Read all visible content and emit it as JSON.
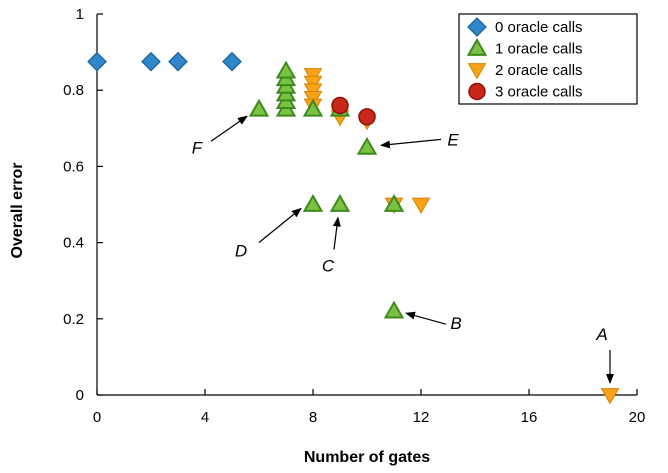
{
  "chart_data": {
    "type": "scatter",
    "xlabel": "Number of gates",
    "ylabel": "Overall error",
    "xlim": [
      0,
      20
    ],
    "ylim": [
      0,
      1
    ],
    "xticks": [
      0,
      4,
      8,
      12,
      16,
      20
    ],
    "yticks": [
      0,
      0.2,
      0.4,
      0.6,
      0.8,
      1
    ],
    "ytick_labels": [
      "0",
      "0.2",
      "0.4",
      "0.6",
      "0.8",
      "1"
    ],
    "grid": false,
    "legend_position": "top-right",
    "series": [
      {
        "name": "0 oracle calls",
        "marker": "diamond",
        "color": "#2f86c9",
        "points": [
          [
            0,
            0.875
          ],
          [
            2,
            0.875
          ],
          [
            3,
            0.875
          ],
          [
            5,
            0.875
          ]
        ]
      },
      {
        "name": "1 oracle calls",
        "marker": "triangle-up",
        "color": "#7cc242",
        "points": [
          [
            6,
            0.75
          ],
          [
            7,
            0.75
          ],
          [
            7,
            0.77
          ],
          [
            7,
            0.79
          ],
          [
            7,
            0.81
          ],
          [
            7,
            0.83
          ],
          [
            7,
            0.85
          ],
          [
            8,
            0.75
          ],
          [
            9,
            0.75
          ],
          [
            10,
            0.65
          ],
          [
            8,
            0.5
          ],
          [
            9,
            0.5
          ],
          [
            11,
            0.5
          ],
          [
            11,
            0.22
          ]
        ]
      },
      {
        "name": "2 oracle calls",
        "marker": "triangle-down",
        "color": "#f7a21b",
        "points": [
          [
            8,
            0.84
          ],
          [
            8,
            0.82
          ],
          [
            8,
            0.8
          ],
          [
            8,
            0.78
          ],
          [
            8,
            0.76
          ],
          [
            9,
            0.73
          ],
          [
            10,
            0.72
          ],
          [
            11,
            0.5
          ],
          [
            12,
            0.5
          ],
          [
            19,
            0.0
          ]
        ]
      },
      {
        "name": "3 oracle calls",
        "marker": "circle",
        "color": "#c8281a",
        "points": [
          [
            9,
            0.76
          ],
          [
            10,
            0.73
          ]
        ]
      }
    ],
    "annotations": [
      {
        "label": "A",
        "point": [
          19,
          0.0
        ]
      },
      {
        "label": "B",
        "point": [
          11,
          0.22
        ]
      },
      {
        "label": "C",
        "point": [
          9,
          0.5
        ]
      },
      {
        "label": "D",
        "point": [
          8,
          0.5
        ]
      },
      {
        "label": "E",
        "point": [
          10,
          0.65
        ]
      },
      {
        "label": "F",
        "point": [
          6,
          0.75
        ]
      }
    ]
  }
}
